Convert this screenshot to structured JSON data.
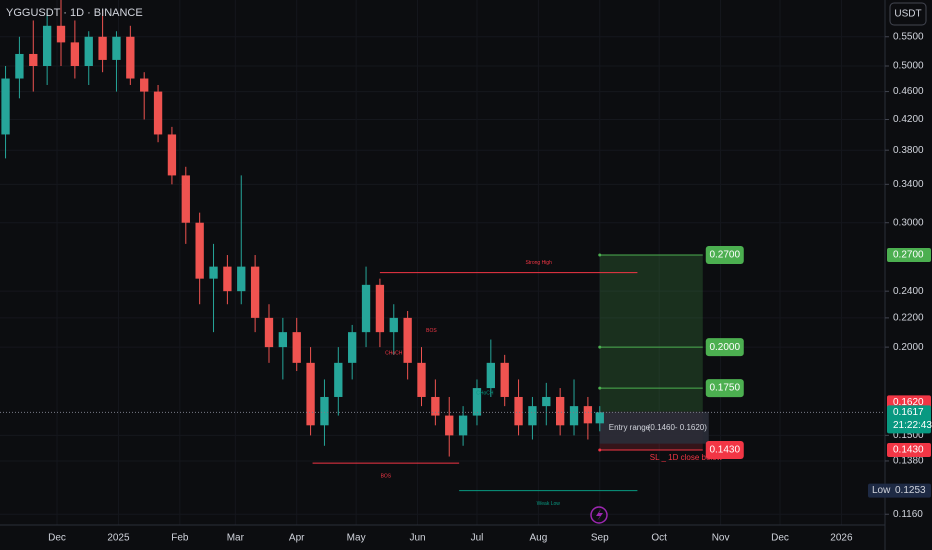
{
  "chart_data": {
    "type": "candlestick",
    "title": "YGGUSDT · 1D · BINANCE",
    "currency": "USDT",
    "log_scale": true,
    "up_color": "#26a69a",
    "down_color": "#ef5350",
    "xlim": [
      1.2,
      448
    ],
    "xticks": [
      {
        "value": 30,
        "label": "Dec"
      },
      {
        "value": 61,
        "label": "2025"
      },
      {
        "value": 92,
        "label": "Feb"
      },
      {
        "value": 120,
        "label": "Mar"
      },
      {
        "value": 151,
        "label": "Apr"
      },
      {
        "value": 181,
        "label": "May"
      },
      {
        "value": 212,
        "label": "Jun"
      },
      {
        "value": 242,
        "label": "Jul"
      },
      {
        "value": 273,
        "label": "Aug"
      },
      {
        "value": 304,
        "label": "Sep"
      },
      {
        "value": 334,
        "label": "Oct"
      },
      {
        "value": 365,
        "label": "Nov"
      },
      {
        "value": 395,
        "label": "Dec"
      },
      {
        "value": 426,
        "label": "2026"
      }
    ],
    "ylim": [
      0.112,
      0.62
    ],
    "yticks": [
      {
        "value": 0.55,
        "label": "0.5500"
      },
      {
        "value": 0.5,
        "label": "0.5000"
      },
      {
        "value": 0.46,
        "label": "0.4600"
      },
      {
        "value": 0.42,
        "label": "0.4200"
      },
      {
        "value": 0.38,
        "label": "0.3800"
      },
      {
        "value": 0.34,
        "label": "0.3400"
      },
      {
        "value": 0.3,
        "label": "0.3000"
      },
      {
        "value": 0.24,
        "label": "0.2400"
      },
      {
        "value": 0.22,
        "label": "0.2200"
      },
      {
        "value": 0.2,
        "label": "0.2000"
      },
      {
        "value": 0.15,
        "label": "0.1500"
      },
      {
        "value": 0.138,
        "label": "0.1380"
      },
      {
        "value": 0.116,
        "label": "0.1160"
      }
    ],
    "x": [
      4,
      11,
      18,
      25,
      32,
      39,
      46,
      53,
      60,
      67,
      74,
      81,
      88,
      95,
      102,
      109,
      116,
      123,
      130,
      137,
      144,
      151,
      158,
      165,
      172,
      179,
      186,
      193,
      200,
      207,
      214,
      221,
      228,
      235,
      242,
      249,
      256,
      263,
      270,
      277,
      284,
      291,
      298,
      304
    ],
    "open": [
      0.4,
      0.48,
      0.52,
      0.5,
      0.57,
      0.54,
      0.5,
      0.55,
      0.51,
      0.55,
      0.48,
      0.46,
      0.4,
      0.35,
      0.3,
      0.25,
      0.26,
      0.24,
      0.26,
      0.22,
      0.2,
      0.21,
      0.19,
      0.155,
      0.17,
      0.19,
      0.21,
      0.245,
      0.21,
      0.22,
      0.19,
      0.17,
      0.16,
      0.15,
      0.16,
      0.175,
      0.19,
      0.17,
      0.155,
      0.165,
      0.17,
      0.155,
      0.165,
      0.156
    ],
    "high": [
      0.5,
      0.55,
      0.58,
      0.6,
      0.62,
      0.58,
      0.56,
      0.6,
      0.56,
      0.57,
      0.49,
      0.47,
      0.41,
      0.36,
      0.31,
      0.28,
      0.27,
      0.35,
      0.27,
      0.23,
      0.22,
      0.22,
      0.2,
      0.18,
      0.2,
      0.215,
      0.26,
      0.25,
      0.23,
      0.225,
      0.2,
      0.18,
      0.17,
      0.165,
      0.18,
      0.205,
      0.195,
      0.18,
      0.17,
      0.178,
      0.175,
      0.18,
      0.17,
      0.165
    ],
    "low": [
      0.37,
      0.45,
      0.46,
      0.47,
      0.5,
      0.48,
      0.47,
      0.49,
      0.46,
      0.47,
      0.42,
      0.39,
      0.34,
      0.28,
      0.23,
      0.21,
      0.23,
      0.23,
      0.21,
      0.19,
      0.18,
      0.185,
      0.15,
      0.145,
      0.16,
      0.18,
      0.2,
      0.2,
      0.195,
      0.18,
      0.165,
      0.155,
      0.14,
      0.145,
      0.155,
      0.17,
      0.165,
      0.15,
      0.148,
      0.155,
      0.15,
      0.15,
      0.148,
      0.152
    ],
    "close": [
      0.48,
      0.52,
      0.5,
      0.57,
      0.54,
      0.5,
      0.55,
      0.51,
      0.55,
      0.48,
      0.46,
      0.4,
      0.35,
      0.3,
      0.25,
      0.26,
      0.24,
      0.26,
      0.22,
      0.2,
      0.21,
      0.19,
      0.155,
      0.17,
      0.19,
      0.21,
      0.245,
      0.21,
      0.22,
      0.19,
      0.17,
      0.16,
      0.15,
      0.16,
      0.175,
      0.19,
      0.17,
      0.155,
      0.165,
      0.17,
      0.155,
      0.165,
      0.156,
      0.1617
    ],
    "structures": [
      {
        "label": "Strong High",
        "value": 0.255,
        "x": [
          193,
          323
        ],
        "color": "#f23645"
      },
      {
        "label": "BOS",
        "value": 0.137,
        "x": [
          159,
          233
        ],
        "color": "#f23645"
      },
      {
        "label": "Weak Low",
        "value": 0.1253,
        "x": [
          233,
          323
        ],
        "color": "#089981"
      }
    ],
    "markers": [
      {
        "text": "CHoCH",
        "x": 200,
        "value": 0.196,
        "color": "#f23645"
      },
      {
        "text": "BOS",
        "x": 219,
        "value": 0.211,
        "color": "#f23645"
      },
      {
        "text": "CHoCH",
        "x": 246,
        "value": 0.172,
        "color": "#089981"
      }
    ],
    "trade": {
      "x": [
        304,
        356
      ],
      "entry_label": "Entry range",
      "entry_range": "(0.1460- 0.1620)",
      "entry_low": 0.146,
      "entry_high": 0.162,
      "stop_note": "SL _ 1D close below",
      "levels": [
        {
          "value": 0.27,
          "label": "0.2700",
          "color": "#4caf50"
        },
        {
          "value": 0.2,
          "label": "0.2000",
          "color": "#4caf50"
        },
        {
          "value": 0.175,
          "label": "0.1750",
          "color": "#4caf50"
        },
        {
          "value": 0.143,
          "label": "0.1430",
          "color": "#f23645"
        }
      ]
    },
    "axis_tags": [
      {
        "value": 0.27,
        "label": "0.2700",
        "color": "#4caf50"
      },
      {
        "value": 0.162,
        "label": "0.1620",
        "color": "#f23645"
      },
      {
        "value": 0.143,
        "label": "0.1430",
        "color": "#f23645"
      }
    ],
    "last_price": 0.1617,
    "countdown": "21:22:43",
    "low_tag": {
      "label": "Low",
      "value": 0.1253
    }
  }
}
